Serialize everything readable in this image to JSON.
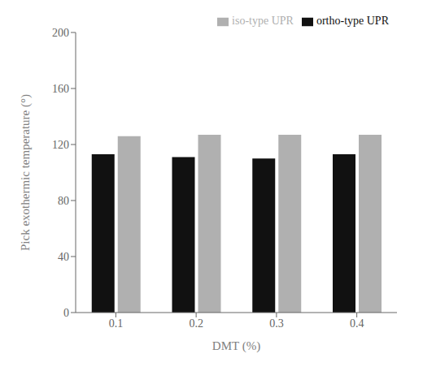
{
  "chart_data": {
    "type": "bar",
    "categories": [
      "0.1",
      "0.2",
      "0.3",
      "0.4"
    ],
    "series": [
      {
        "name": "ortho-type UPR",
        "color": "#111111",
        "values": [
          113,
          111,
          110,
          113
        ]
      },
      {
        "name": "iso-type UPR",
        "color": "#b0b0b0",
        "values": [
          126,
          127,
          127,
          127
        ]
      }
    ],
    "xlabel": "DMT (%)",
    "ylabel": "Pick exothermic temperature (°)",
    "ylim": [
      0,
      200
    ],
    "yticks": [
      0,
      40,
      80,
      120,
      160,
      200
    ],
    "grid": false,
    "legend": "upper right"
  }
}
